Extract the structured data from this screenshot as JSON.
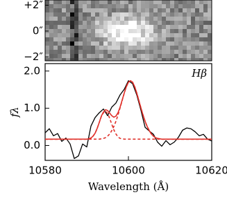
{
  "chart_data": [
    {
      "type": "image",
      "ylim": [
        -2.3,
        2.4
      ],
      "yticks": [
        {
          "value": 2,
          "label": "+2″"
        },
        {
          "value": 0,
          "label": "0″"
        },
        {
          "value": -2,
          "label": "−2″"
        }
      ]
    },
    {
      "type": "line",
      "annotation": "Hβ",
      "xlabel": "Wavelength (Å)",
      "ylabel": "fλ",
      "xlim": [
        10580,
        10620
      ],
      "xticks": [
        10580,
        10600,
        10620
      ],
      "ylim": [
        -0.4,
        2.2
      ],
      "yticks": [
        {
          "value": 0,
          "label": "0.0"
        },
        {
          "value": 1,
          "label": "1.0"
        },
        {
          "value": 2,
          "label": "2.0"
        }
      ],
      "series": [
        {
          "color": "#000000",
          "dash": false,
          "x": [
            10580,
            10581,
            10582,
            10583,
            10584,
            10585,
            10586,
            10587,
            10588,
            10589,
            10590,
            10591,
            10592,
            10593,
            10594,
            10595,
            10596,
            10597,
            10598,
            10599,
            10600,
            10601,
            10602,
            10603,
            10604,
            10605,
            10606,
            10607,
            10608,
            10609,
            10610,
            10611,
            10612,
            10613,
            10614,
            10615,
            10616,
            10617,
            10618,
            10619,
            10620
          ],
          "values": [
            0.34,
            0.45,
            0.26,
            0.32,
            0.11,
            0.2,
            0.04,
            -0.35,
            -0.28,
            0.04,
            -0.04,
            0.52,
            0.75,
            0.88,
            0.98,
            0.8,
            1.03,
            1.14,
            1.36,
            1.51,
            1.74,
            1.66,
            1.36,
            0.95,
            0.49,
            0.39,
            0.3,
            0.09,
            -0.02,
            0.13,
            0.02,
            0.09,
            0.22,
            0.41,
            0.47,
            0.45,
            0.37,
            0.26,
            0.3,
            0.17,
            0.12
          ]
        },
        {
          "color": "#e0302a",
          "dash": true,
          "x": [
            10580,
            10589,
            10589.5,
            10590,
            10590.5,
            10591,
            10591.5,
            10592,
            10592.5,
            10593,
            10593.5,
            10594,
            10594.5,
            10595,
            10595.5,
            10596,
            10596.5,
            10597,
            10597.5,
            10598,
            10598.5,
            10599,
            10599.5,
            10600,
            10600.5,
            10601,
            10601.5,
            10602,
            10602.5,
            10603,
            10603.5,
            10604,
            10604.5,
            10605,
            10605.5,
            10606,
            10606.5,
            10607,
            10607.5,
            10608,
            10620
          ],
          "values": [
            0.17,
            0.17,
            0.17,
            0.17,
            0.18,
            0.2,
            0.25,
            0.33,
            0.46,
            0.62,
            0.78,
            0.88,
            0.92,
            0.86,
            0.73,
            0.57,
            0.42,
            0.31,
            0.23,
            0.19,
            0.18,
            0.17,
            0.17,
            0.17,
            0.17,
            0.17,
            0.17,
            0.17,
            0.17,
            0.17,
            0.17,
            0.17,
            0.17,
            0.17,
            0.17,
            0.17,
            0.17,
            0.17,
            0.17,
            0.17,
            0.17
          ]
        },
        {
          "color": "#e0302a",
          "dash": true,
          "x": [
            10580,
            10589,
            10589.5,
            10590,
            10590.5,
            10591,
            10591.5,
            10592,
            10592.5,
            10593,
            10593.5,
            10594,
            10594.5,
            10595,
            10595.5,
            10596,
            10596.5,
            10597,
            10597.5,
            10598,
            10598.5,
            10599,
            10599.5,
            10600,
            10600.5,
            10601,
            10601.5,
            10602,
            10602.5,
            10603,
            10603.5,
            10604,
            10604.5,
            10605,
            10605.5,
            10606,
            10606.5,
            10607,
            10607.5,
            10608,
            10620
          ],
          "values": [
            0.17,
            0.17,
            0.17,
            0.17,
            0.17,
            0.17,
            0.17,
            0.17,
            0.17,
            0.17,
            0.18,
            0.19,
            0.21,
            0.25,
            0.31,
            0.4,
            0.51,
            0.65,
            0.82,
            1.01,
            1.21,
            1.41,
            1.58,
            1.7,
            1.74,
            1.7,
            1.58,
            1.41,
            1.21,
            1.01,
            0.82,
            0.65,
            0.51,
            0.4,
            0.31,
            0.25,
            0.21,
            0.19,
            0.18,
            0.17,
            0.17
          ]
        },
        {
          "color": "#e0302a",
          "dash": false,
          "x": [
            10580,
            10589,
            10589.5,
            10590,
            10590.5,
            10591,
            10591.5,
            10592,
            10592.5,
            10593,
            10593.5,
            10594,
            10594.5,
            10595,
            10595.5,
            10596,
            10596.5,
            10597,
            10597.5,
            10598,
            10598.5,
            10599,
            10599.5,
            10600,
            10600.5,
            10601,
            10601.5,
            10602,
            10602.5,
            10603,
            10603.5,
            10604,
            10604.5,
            10605,
            10605.5,
            10606,
            10606.5,
            10607,
            10607.5,
            10608,
            10620
          ],
          "values": [
            0.17,
            0.17,
            0.17,
            0.17,
            0.18,
            0.2,
            0.25,
            0.33,
            0.46,
            0.62,
            0.79,
            0.9,
            0.96,
            0.94,
            0.87,
            0.8,
            0.76,
            0.79,
            0.88,
            1.03,
            1.22,
            1.41,
            1.58,
            1.7,
            1.74,
            1.7,
            1.58,
            1.41,
            1.21,
            1.01,
            0.82,
            0.65,
            0.51,
            0.4,
            0.31,
            0.25,
            0.21,
            0.19,
            0.18,
            0.17,
            0.17
          ]
        }
      ]
    }
  ]
}
